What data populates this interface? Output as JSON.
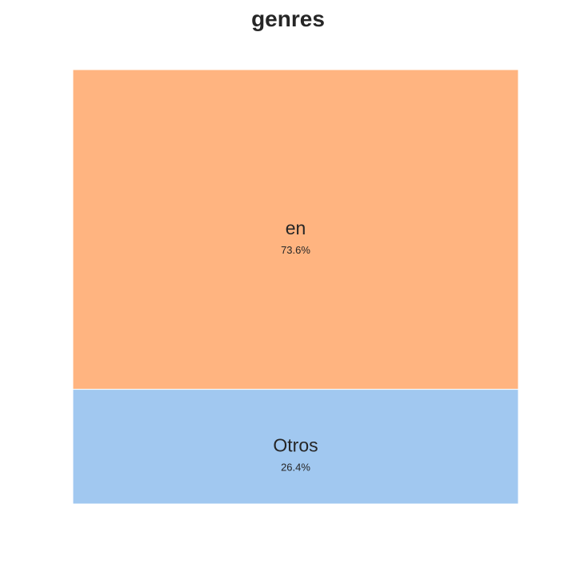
{
  "chart_data": {
    "type": "treemap",
    "title": "genres",
    "categories": [
      "en",
      "Otros"
    ],
    "values": [
      73.6,
      26.4
    ],
    "labels": [
      "73.6%",
      "26.4%"
    ],
    "colors": [
      "#FFB480",
      "#A1C8F0"
    ],
    "grid": false,
    "legend": "none"
  }
}
